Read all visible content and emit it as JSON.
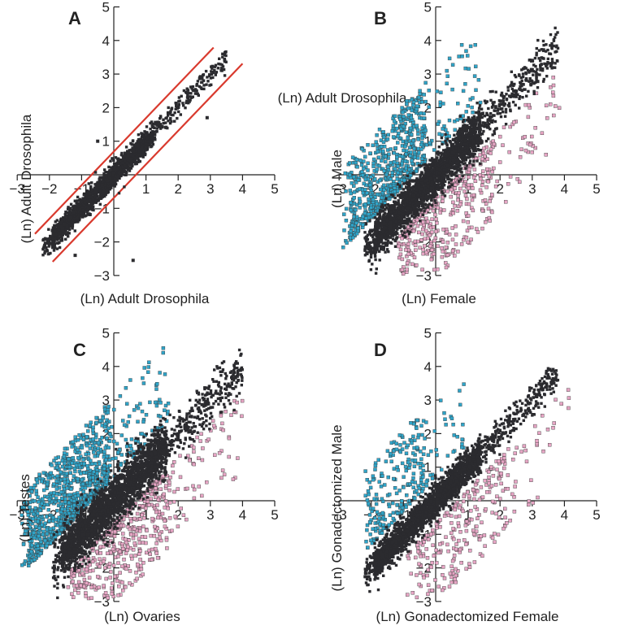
{
  "chart_data": [
    {
      "panel": "A",
      "type": "scatter",
      "xlabel": "(Ln) Adult Drosophila",
      "ylabel": "(Ln) Adult Drosophila",
      "xlim": [
        -3,
        5
      ],
      "ylim": [
        -3,
        5
      ],
      "xticks": [
        -3,
        -2,
        -1,
        0,
        1,
        2,
        3,
        4,
        5
      ],
      "yticks": [
        -3,
        -2,
        -1,
        0,
        1,
        2,
        3,
        4,
        5
      ],
      "tick_labels": [
        "−3",
        "−2",
        "−1",
        "",
        "1",
        "2",
        "3",
        "4",
        "5"
      ],
      "series": [
        {
          "color": "#2b2b2f",
          "spread": 0.17,
          "x_range": [
            -2.2,
            3.5
          ],
          "n": 1800
        }
      ],
      "outliers": [
        [
          -1.2,
          -2.4
        ],
        [
          0.6,
          -2.55
        ],
        [
          2.9,
          1.7
        ],
        [
          -0.5,
          1.0
        ]
      ],
      "reference_lines": [
        {
          "slope": 1,
          "intercept": 0.69,
          "color": "#d93a2e",
          "x_range": [
            -2.45,
            3.1
          ]
        },
        {
          "slope": 1,
          "intercept": -0.69,
          "color": "#d93a2e",
          "x_range": [
            -1.9,
            4.0
          ]
        }
      ],
      "annotation": "(Ln) Adult Drosophila"
    },
    {
      "panel": "B",
      "type": "scatter",
      "xlabel": "(Ln) Female",
      "ylabel": "(Ln) Male",
      "xlim": [
        -3,
        5
      ],
      "ylim": [
        -3,
        5
      ],
      "xticks": [
        -3,
        -2,
        -1,
        0,
        1,
        2,
        3,
        4,
        5
      ],
      "yticks": [
        -3,
        -2,
        -1,
        0,
        1,
        2,
        3,
        4,
        5
      ],
      "tick_labels": [
        "−3",
        "−2",
        "−1",
        "",
        "1",
        "2",
        "3",
        "4",
        "5"
      ],
      "series": [
        {
          "color": "#2b2b2f",
          "spread": 0.3,
          "x_range": [
            -2.2,
            3.8
          ],
          "n": 2600
        },
        {
          "color": "#2fa4c8",
          "side": "above",
          "x_range": [
            -2.9,
            1.4
          ],
          "n": 700
        },
        {
          "color": "#e6a5c4",
          "side": "below",
          "x_range": [
            -1.4,
            3.9
          ],
          "n": 450
        }
      ]
    },
    {
      "panel": "C",
      "type": "scatter",
      "xlabel": "(Ln) Ovaries",
      "ylabel": "(Ln) Testes",
      "xlim": [
        -3,
        5
      ],
      "ylim": [
        -3,
        5
      ],
      "xticks": [
        -3,
        -2,
        -1,
        0,
        1,
        2,
        3,
        4,
        5
      ],
      "yticks": [
        -3,
        -2,
        -1,
        0,
        1,
        2,
        3,
        4,
        5
      ],
      "tick_labels": [
        "−3",
        "−2",
        "−1",
        "",
        "1",
        "2",
        "3",
        "4",
        "5"
      ],
      "series": [
        {
          "color": "#2b2b2f",
          "spread": 0.38,
          "x_range": [
            -1.9,
            4.0
          ],
          "n": 2600
        },
        {
          "color": "#2fa4c8",
          "side": "above",
          "x_range": [
            -2.9,
            1.7
          ],
          "n": 950
        },
        {
          "color": "#e6a5c4",
          "side": "below",
          "x_range": [
            -1.6,
            4.0
          ],
          "n": 550
        }
      ]
    },
    {
      "panel": "D",
      "type": "scatter",
      "xlabel": "(Ln) Gonadectomized Female",
      "ylabel": "(Ln) Gonadectomized Male",
      "xlim": [
        -3,
        5
      ],
      "ylim": [
        -3,
        5
      ],
      "xticks": [
        -3,
        -2,
        -1,
        0,
        1,
        2,
        3,
        4,
        5
      ],
      "yticks": [
        -3,
        -2,
        -1,
        0,
        1,
        2,
        3,
        4,
        5
      ],
      "tick_labels": [
        "−3",
        "−2",
        "−1",
        "",
        "1",
        "2",
        "3",
        "4",
        "5"
      ],
      "series": [
        {
          "color": "#2b2b2f",
          "spread": 0.24,
          "x_range": [
            -2.2,
            3.8
          ],
          "n": 2400
        },
        {
          "color": "#2fa4c8",
          "side": "above",
          "x_range": [
            -2.3,
            0.9
          ],
          "n": 260
        },
        {
          "color": "#e6a5c4",
          "side": "below",
          "x_range": [
            -0.9,
            4.2
          ],
          "n": 300
        }
      ]
    }
  ]
}
